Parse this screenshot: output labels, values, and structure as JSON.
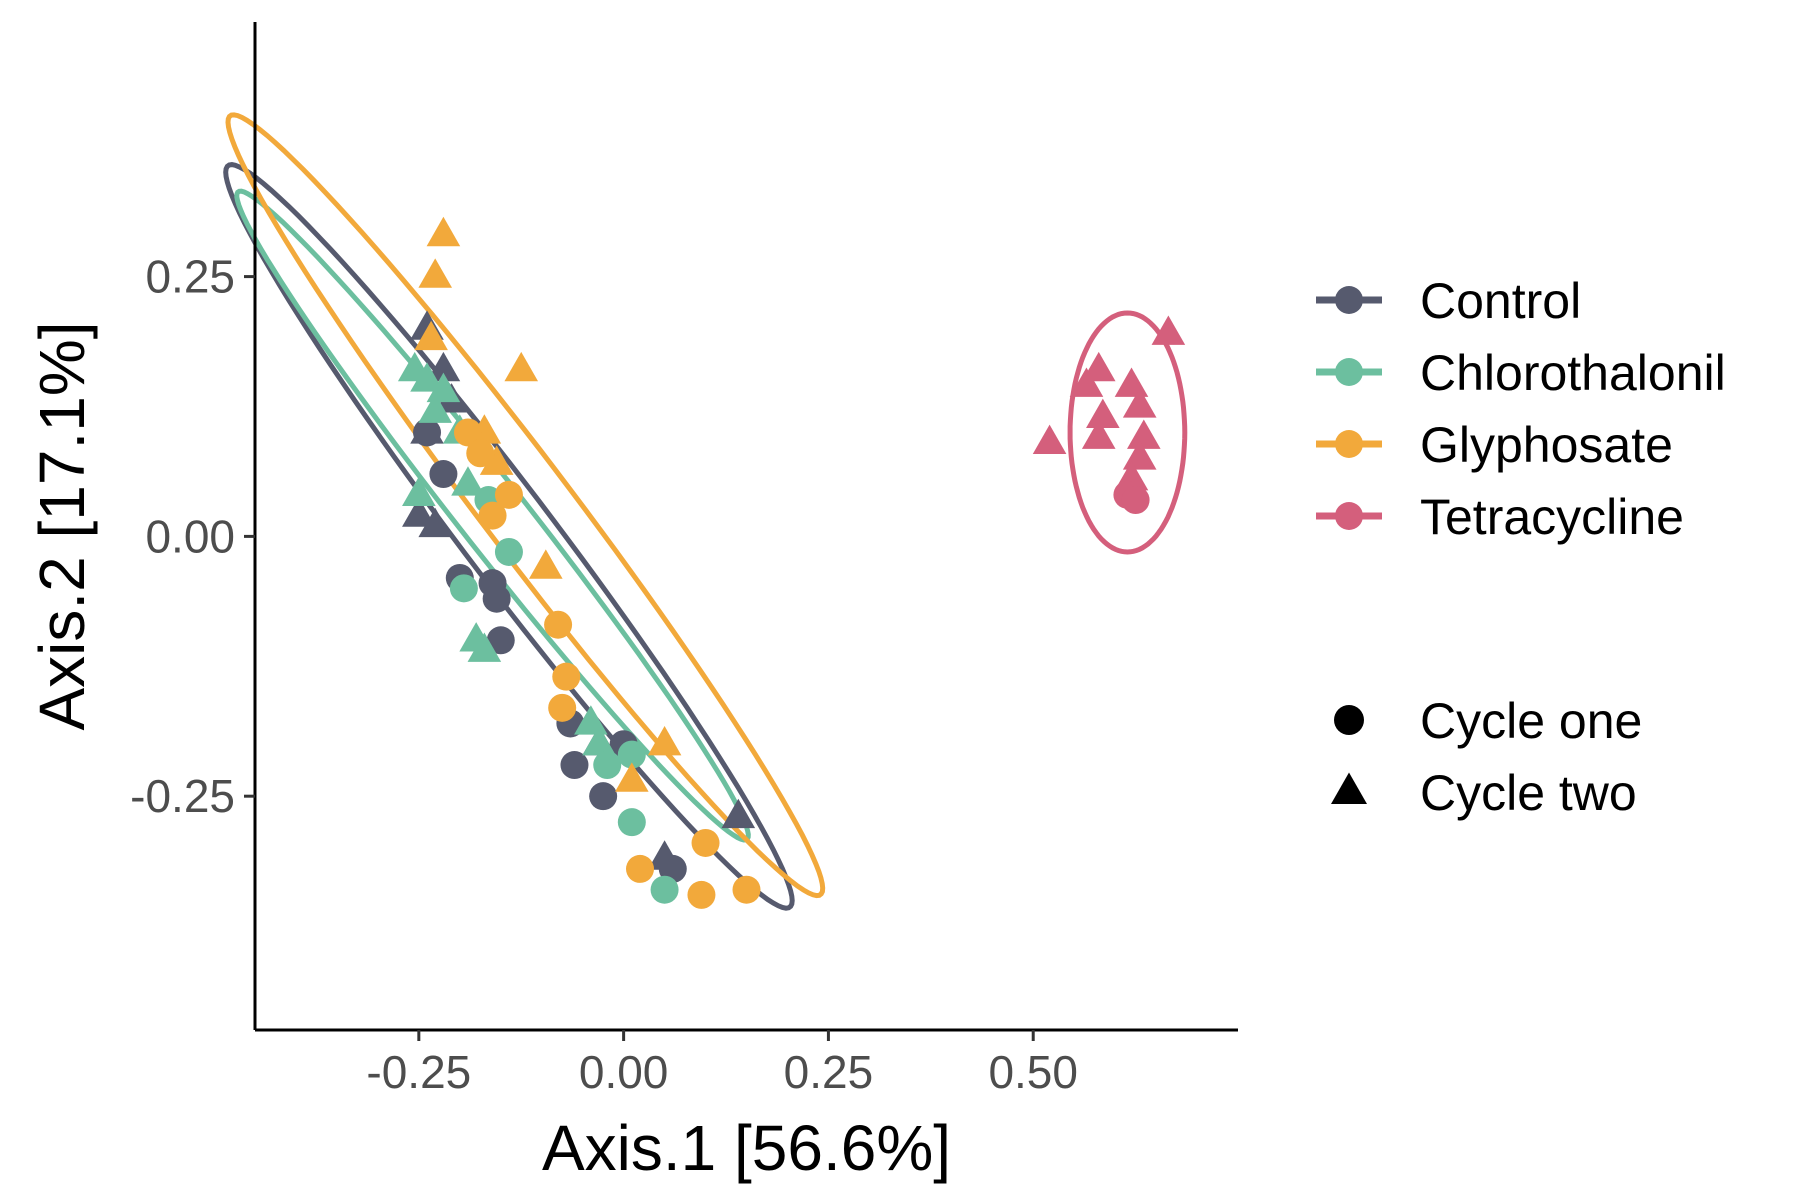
{
  "chart_data": {
    "type": "scatter",
    "xlabel": "Axis.1   [56.6%]",
    "ylabel": "Axis.2   [17.1%]",
    "xlim": [
      -0.45,
      0.75
    ],
    "ylim": [
      -0.475,
      0.495
    ],
    "x_ticks": [
      -0.25,
      0.0,
      0.25,
      0.5
    ],
    "x_tick_labels": [
      "-0.25",
      "0.00",
      "0.25",
      "0.50"
    ],
    "y_ticks": [
      -0.25,
      0.0,
      0.25
    ],
    "y_tick_labels": [
      "-0.25",
      "0.00",
      "0.25"
    ],
    "grid": false,
    "legend_position": "right",
    "groups": [
      {
        "name": "Control",
        "color": "#565a6e"
      },
      {
        "name": "Chlorothalonil",
        "color": "#6cbf9f"
      },
      {
        "name": "Glyphosate",
        "color": "#f2a93b"
      },
      {
        "name": "Tetracycline",
        "color": "#d45f7c"
      }
    ],
    "shapes": [
      {
        "name": "Cycle one",
        "shape": "circle"
      },
      {
        "name": "Cycle two",
        "shape": "triangle"
      }
    ],
    "ellipses": [
      {
        "group": "Control",
        "cx": -0.14,
        "cy": 0.0,
        "rx": 0.495,
        "ry": 0.05,
        "angle_deg": -46
      },
      {
        "group": "Chlorothalonil",
        "cx": -0.16,
        "cy": 0.02,
        "rx": 0.44,
        "ry": 0.037,
        "angle_deg": -45
      },
      {
        "group": "Glyphosate",
        "cx": -0.12,
        "cy": 0.03,
        "rx": 0.52,
        "ry": 0.05,
        "angle_deg": -46
      },
      {
        "group": "Tetracycline",
        "cx": 0.615,
        "cy": 0.1,
        "rx": 0.115,
        "ry": 0.07,
        "angle_deg": 90
      }
    ],
    "points": [
      {
        "x": -0.24,
        "y": 0.2,
        "group": "Control",
        "shape": "triangle"
      },
      {
        "x": -0.22,
        "y": 0.16,
        "group": "Control",
        "shape": "triangle"
      },
      {
        "x": -0.21,
        "y": 0.13,
        "group": "Control",
        "shape": "triangle"
      },
      {
        "x": -0.24,
        "y": 0.1,
        "group": "Control",
        "shape": "triangle"
      },
      {
        "x": -0.25,
        "y": 0.02,
        "group": "Control",
        "shape": "triangle"
      },
      {
        "x": -0.23,
        "y": 0.01,
        "group": "Control",
        "shape": "triangle"
      },
      {
        "x": -0.22,
        "y": 0.06,
        "group": "Control",
        "shape": "circle"
      },
      {
        "x": -0.24,
        "y": 0.1,
        "group": "Control",
        "shape": "circle"
      },
      {
        "x": -0.2,
        "y": -0.04,
        "group": "Control",
        "shape": "circle"
      },
      {
        "x": -0.16,
        "y": -0.045,
        "group": "Control",
        "shape": "circle"
      },
      {
        "x": -0.155,
        "y": -0.06,
        "group": "Control",
        "shape": "circle"
      },
      {
        "x": -0.15,
        "y": -0.1,
        "group": "Control",
        "shape": "circle"
      },
      {
        "x": -0.065,
        "y": -0.18,
        "group": "Control",
        "shape": "circle"
      },
      {
        "x": -0.06,
        "y": -0.22,
        "group": "Control",
        "shape": "circle"
      },
      {
        "x": -0.025,
        "y": -0.25,
        "group": "Control",
        "shape": "circle"
      },
      {
        "x": 0.0,
        "y": -0.2,
        "group": "Control",
        "shape": "circle"
      },
      {
        "x": 0.06,
        "y": -0.32,
        "group": "Control",
        "shape": "circle"
      },
      {
        "x": -0.03,
        "y": -0.2,
        "group": "Control",
        "shape": "triangle"
      },
      {
        "x": 0.05,
        "y": -0.31,
        "group": "Control",
        "shape": "triangle"
      },
      {
        "x": 0.14,
        "y": -0.27,
        "group": "Control",
        "shape": "triangle"
      },
      {
        "x": -0.255,
        "y": 0.16,
        "group": "Chlorothalonil",
        "shape": "triangle"
      },
      {
        "x": -0.24,
        "y": 0.15,
        "group": "Chlorothalonil",
        "shape": "triangle"
      },
      {
        "x": -0.23,
        "y": 0.12,
        "group": "Chlorothalonil",
        "shape": "triangle"
      },
      {
        "x": -0.22,
        "y": 0.14,
        "group": "Chlorothalonil",
        "shape": "triangle"
      },
      {
        "x": -0.2,
        "y": 0.1,
        "group": "Chlorothalonil",
        "shape": "triangle"
      },
      {
        "x": -0.19,
        "y": 0.05,
        "group": "Chlorothalonil",
        "shape": "triangle"
      },
      {
        "x": -0.25,
        "y": 0.04,
        "group": "Chlorothalonil",
        "shape": "triangle"
      },
      {
        "x": -0.17,
        "y": -0.11,
        "group": "Chlorothalonil",
        "shape": "triangle"
      },
      {
        "x": -0.18,
        "y": -0.1,
        "group": "Chlorothalonil",
        "shape": "triangle"
      },
      {
        "x": -0.04,
        "y": -0.18,
        "group": "Chlorothalonil",
        "shape": "triangle"
      },
      {
        "x": -0.03,
        "y": -0.2,
        "group": "Chlorothalonil",
        "shape": "triangle"
      },
      {
        "x": -0.165,
        "y": 0.035,
        "group": "Chlorothalonil",
        "shape": "circle"
      },
      {
        "x": -0.14,
        "y": -0.015,
        "group": "Chlorothalonil",
        "shape": "circle"
      },
      {
        "x": -0.195,
        "y": -0.05,
        "group": "Chlorothalonil",
        "shape": "circle"
      },
      {
        "x": -0.02,
        "y": -0.22,
        "group": "Chlorothalonil",
        "shape": "circle"
      },
      {
        "x": 0.01,
        "y": -0.21,
        "group": "Chlorothalonil",
        "shape": "circle"
      },
      {
        "x": 0.01,
        "y": -0.275,
        "group": "Chlorothalonil",
        "shape": "circle"
      },
      {
        "x": 0.05,
        "y": -0.34,
        "group": "Chlorothalonil",
        "shape": "circle"
      },
      {
        "x": -0.22,
        "y": 0.29,
        "group": "Glyphosate",
        "shape": "triangle"
      },
      {
        "x": -0.23,
        "y": 0.25,
        "group": "Glyphosate",
        "shape": "triangle"
      },
      {
        "x": -0.235,
        "y": 0.19,
        "group": "Glyphosate",
        "shape": "triangle"
      },
      {
        "x": -0.125,
        "y": 0.16,
        "group": "Glyphosate",
        "shape": "triangle"
      },
      {
        "x": -0.17,
        "y": 0.1,
        "group": "Glyphosate",
        "shape": "triangle"
      },
      {
        "x": -0.155,
        "y": 0.07,
        "group": "Glyphosate",
        "shape": "triangle"
      },
      {
        "x": -0.095,
        "y": -0.03,
        "group": "Glyphosate",
        "shape": "triangle"
      },
      {
        "x": 0.05,
        "y": -0.2,
        "group": "Glyphosate",
        "shape": "triangle"
      },
      {
        "x": 0.01,
        "y": -0.235,
        "group": "Glyphosate",
        "shape": "triangle"
      },
      {
        "x": -0.19,
        "y": 0.1,
        "group": "Glyphosate",
        "shape": "circle"
      },
      {
        "x": -0.175,
        "y": 0.08,
        "group": "Glyphosate",
        "shape": "circle"
      },
      {
        "x": -0.14,
        "y": 0.04,
        "group": "Glyphosate",
        "shape": "circle"
      },
      {
        "x": -0.16,
        "y": 0.02,
        "group": "Glyphosate",
        "shape": "circle"
      },
      {
        "x": -0.08,
        "y": -0.085,
        "group": "Glyphosate",
        "shape": "circle"
      },
      {
        "x": -0.07,
        "y": -0.135,
        "group": "Glyphosate",
        "shape": "circle"
      },
      {
        "x": -0.075,
        "y": -0.165,
        "group": "Glyphosate",
        "shape": "circle"
      },
      {
        "x": 0.02,
        "y": -0.32,
        "group": "Glyphosate",
        "shape": "circle"
      },
      {
        "x": 0.1,
        "y": -0.295,
        "group": "Glyphosate",
        "shape": "circle"
      },
      {
        "x": 0.095,
        "y": -0.345,
        "group": "Glyphosate",
        "shape": "circle"
      },
      {
        "x": 0.15,
        "y": -0.34,
        "group": "Glyphosate",
        "shape": "circle"
      },
      {
        "x": 0.665,
        "y": 0.195,
        "group": "Tetracycline",
        "shape": "triangle"
      },
      {
        "x": 0.58,
        "y": 0.16,
        "group": "Tetracycline",
        "shape": "triangle"
      },
      {
        "x": 0.565,
        "y": 0.145,
        "group": "Tetracycline",
        "shape": "triangle"
      },
      {
        "x": 0.62,
        "y": 0.145,
        "group": "Tetracycline",
        "shape": "triangle"
      },
      {
        "x": 0.63,
        "y": 0.125,
        "group": "Tetracycline",
        "shape": "triangle"
      },
      {
        "x": 0.585,
        "y": 0.115,
        "group": "Tetracycline",
        "shape": "triangle"
      },
      {
        "x": 0.58,
        "y": 0.095,
        "group": "Tetracycline",
        "shape": "triangle"
      },
      {
        "x": 0.635,
        "y": 0.095,
        "group": "Tetracycline",
        "shape": "triangle"
      },
      {
        "x": 0.52,
        "y": 0.09,
        "group": "Tetracycline",
        "shape": "triangle"
      },
      {
        "x": 0.63,
        "y": 0.075,
        "group": "Tetracycline",
        "shape": "triangle"
      },
      {
        "x": 0.62,
        "y": 0.055,
        "group": "Tetracycline",
        "shape": "triangle"
      },
      {
        "x": 0.615,
        "y": 0.04,
        "group": "Tetracycline",
        "shape": "circle"
      },
      {
        "x": 0.625,
        "y": 0.035,
        "group": "Tetracycline",
        "shape": "circle"
      }
    ]
  }
}
